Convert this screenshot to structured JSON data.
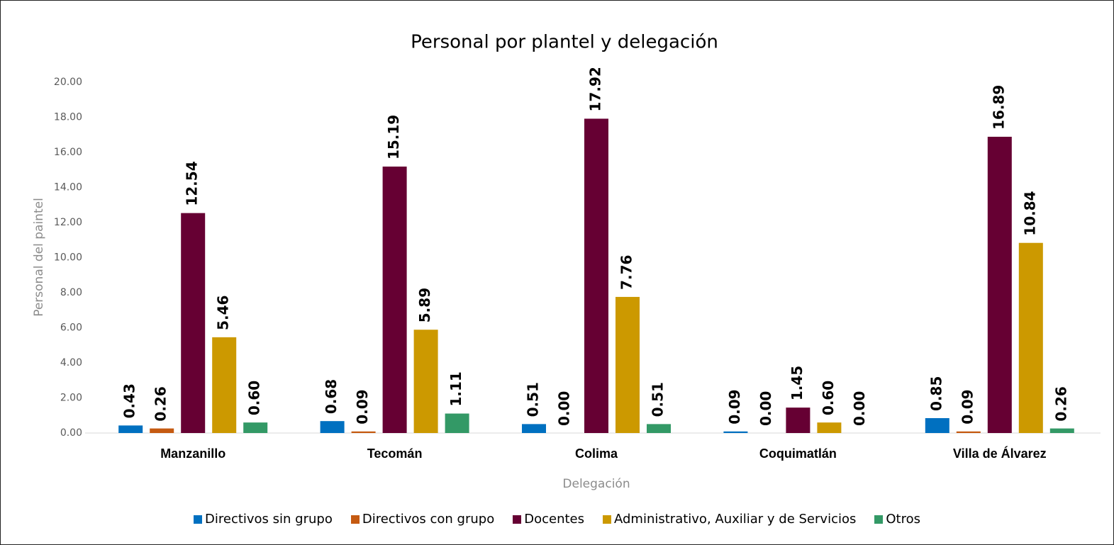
{
  "chart_data": {
    "type": "bar",
    "title": "Personal por plantel y delegación",
    "x_label": "Delegación",
    "y_label": "Personal del paintel",
    "categories": [
      "Manzanillo",
      "Tecomán",
      "Colima",
      "Coquimatlán",
      "Villa de Álvarez"
    ],
    "series": [
      {
        "name": "Directivos sin grupo",
        "color": "#0070c0",
        "values": [
          0.43,
          0.68,
          0.51,
          0.09,
          0.85
        ],
        "value_labels": [
          "0.43",
          "0.68",
          "0.51",
          "0.09",
          "0.85"
        ]
      },
      {
        "name": "Directivos con grupo",
        "color": "#c55a11",
        "values": [
          0.26,
          0.09,
          0,
          0,
          0.09
        ],
        "value_labels": [
          "0.26",
          "0.09",
          "0.00",
          "0.00",
          "0.09"
        ]
      },
      {
        "name": "Docentes",
        "color": "#660033",
        "values": [
          12.54,
          15.19,
          17.92,
          1.45,
          16.89
        ],
        "value_labels": [
          "12.54",
          "15.19",
          "17.92",
          "1.45",
          "16.89"
        ]
      },
      {
        "name": "Administrativo, Auxiliar y de Servicios",
        "color": "#cc9900",
        "values": [
          5.46,
          5.89,
          7.76,
          0.6,
          10.84
        ],
        "value_labels": [
          "5.46",
          "5.89",
          "7.76",
          "0.60",
          "10.84"
        ]
      },
      {
        "name": "Otros",
        "color": "#339966",
        "values": [
          0.6,
          1.11,
          0.51,
          0,
          0.26
        ],
        "value_labels": [
          "0.60",
          "1.11",
          "0.51",
          "0.00",
          "0.26"
        ]
      }
    ],
    "ylim": [
      0,
      20
    ],
    "yticks": [
      {
        "value": 0,
        "label": "0.00"
      },
      {
        "value": 2,
        "label": "2.00"
      },
      {
        "value": 4,
        "label": "4.00"
      },
      {
        "value": 6,
        "label": "6.00"
      },
      {
        "value": 8,
        "label": "8.00"
      },
      {
        "value": 10,
        "label": "10.00"
      },
      {
        "value": 12,
        "label": "12.00"
      },
      {
        "value": 14,
        "label": "14.00"
      },
      {
        "value": 16,
        "label": "16.00"
      },
      {
        "value": 18,
        "label": "18.00"
      },
      {
        "value": 20,
        "label": "20.00"
      }
    ],
    "grid": false,
    "legend": "bottom"
  }
}
